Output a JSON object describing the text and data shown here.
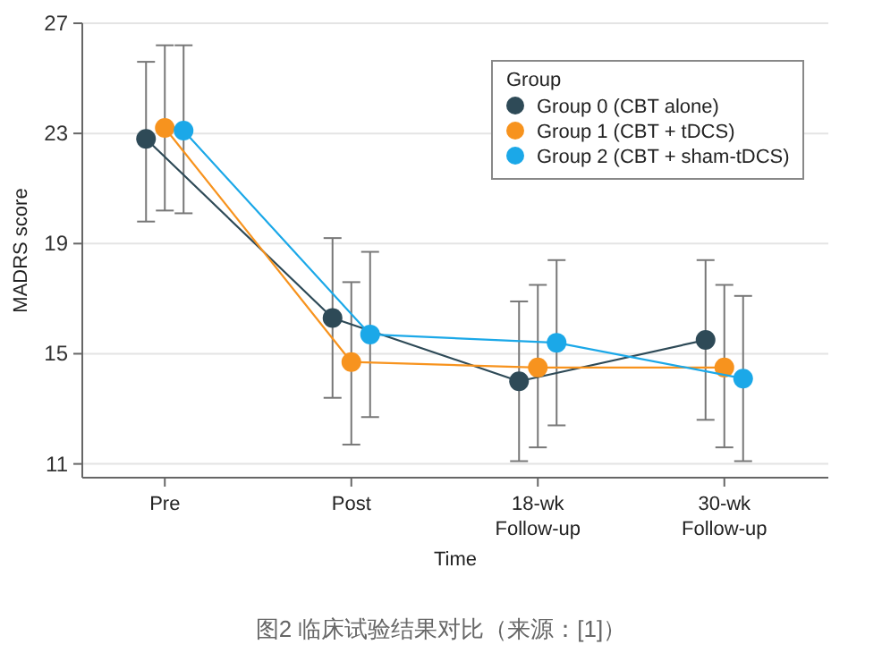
{
  "chart_data": {
    "type": "line",
    "xlabel": "Time",
    "ylabel": "MADRS score",
    "legend_title": "Group",
    "categories": [
      "Pre",
      "Post",
      "18-wk\nFollow-up",
      "30-wk\nFollow-up"
    ],
    "series": [
      {
        "name": "Group 0 (CBT alone)",
        "color": "#2e4a57",
        "values": [
          22.8,
          16.3,
          14.0,
          15.5
        ],
        "errors": [
          [
            19.8,
            25.6
          ],
          [
            13.4,
            19.2
          ],
          [
            11.1,
            16.9
          ],
          [
            12.6,
            18.4
          ]
        ]
      },
      {
        "name": "Group 1 (CBT + tDCS)",
        "color": "#f7931e",
        "values": [
          23.2,
          14.7,
          14.5,
          14.5
        ],
        "errors": [
          [
            20.2,
            26.2
          ],
          [
            11.7,
            17.6
          ],
          [
            11.6,
            17.5
          ],
          [
            11.6,
            17.5
          ]
        ]
      },
      {
        "name": "Group 2 (CBT + sham-tDCS)",
        "color": "#1ba8e8",
        "values": [
          23.1,
          15.7,
          15.4,
          14.1
        ],
        "errors": [
          [
            20.1,
            26.2
          ],
          [
            12.7,
            18.7
          ],
          [
            12.4,
            18.4
          ],
          [
            11.1,
            17.1
          ]
        ]
      }
    ],
    "ylim": [
      10.5,
      27
    ],
    "yticks": [
      11,
      15,
      19,
      23,
      27
    ],
    "grid": "y",
    "legend": "top right",
    "marker": "circle",
    "line_style": "solid",
    "annotations": [
      "图2 临床试验结果对比（来源：[1]）"
    ]
  }
}
